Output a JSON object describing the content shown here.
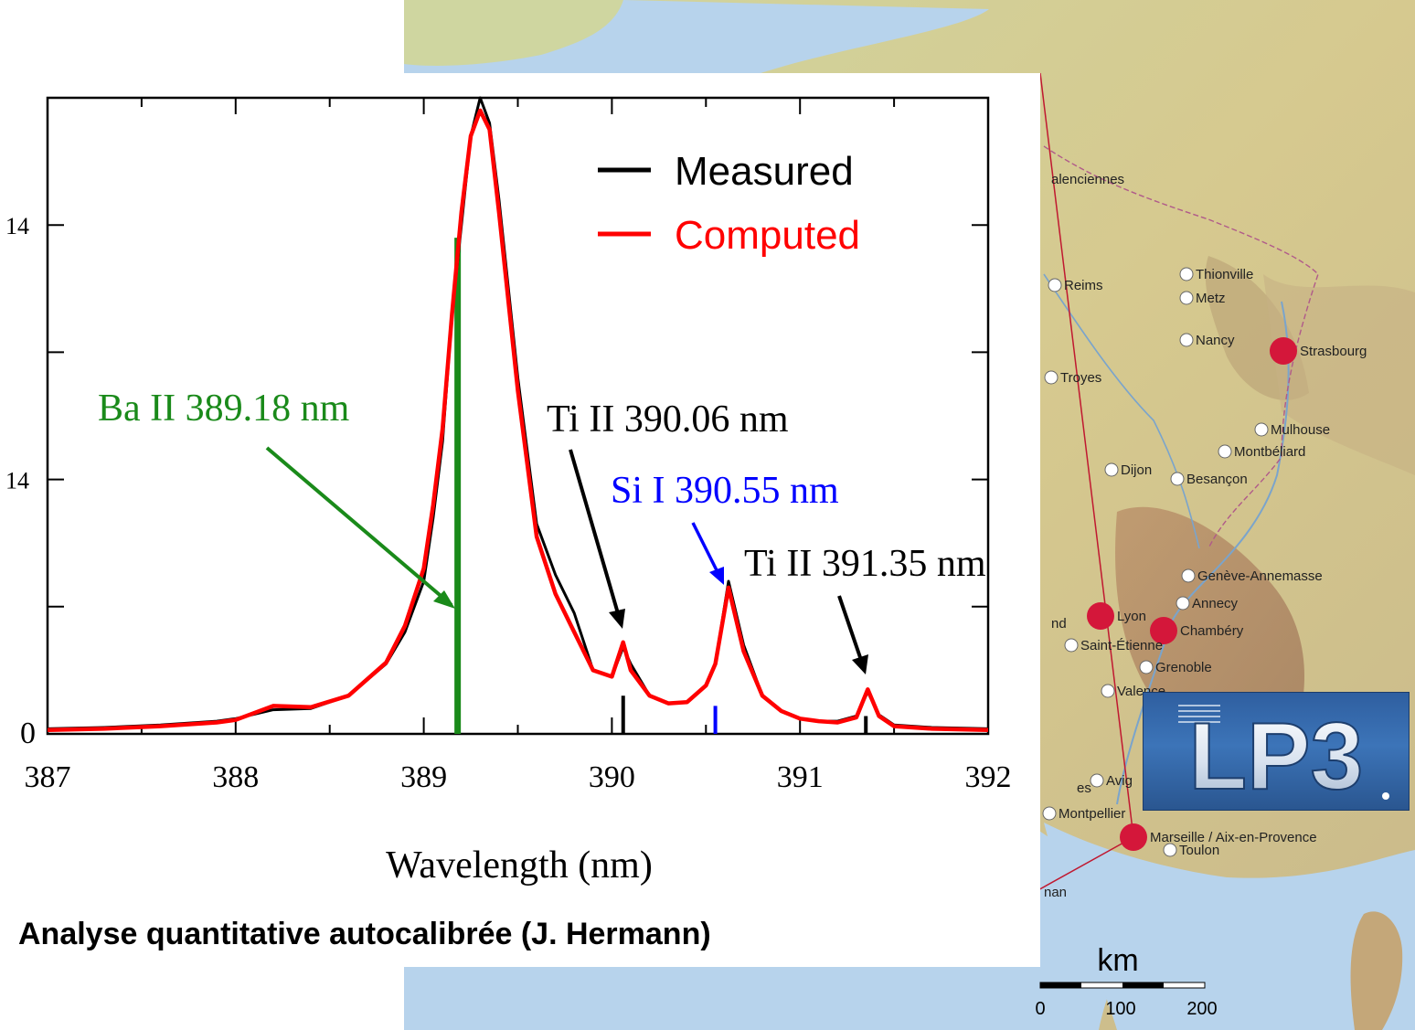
{
  "map": {
    "cities": [
      {
        "name": "alenciennes",
        "major": false
      },
      {
        "name": "Reims",
        "major": false
      },
      {
        "name": "Thionville",
        "major": false
      },
      {
        "name": "Metz",
        "major": false
      },
      {
        "name": "Nancy",
        "major": false
      },
      {
        "name": "Strasbourg",
        "major": true
      },
      {
        "name": "Troyes",
        "major": false
      },
      {
        "name": "Mulhouse",
        "major": false
      },
      {
        "name": "Montbéliard",
        "major": false
      },
      {
        "name": "Dijon",
        "major": false
      },
      {
        "name": "Besançon",
        "major": false
      },
      {
        "name": "Genève-Annemasse",
        "major": false
      },
      {
        "name": "Annecy",
        "major": false
      },
      {
        "name": "Lyon",
        "major": true
      },
      {
        "name": "Chambéry",
        "major": true
      },
      {
        "name": "nd",
        "major": false
      },
      {
        "name": "Saint-Étienne",
        "major": false
      },
      {
        "name": "Grenoble",
        "major": false
      },
      {
        "name": "Valence",
        "major": false
      },
      {
        "name": "es",
        "major": false
      },
      {
        "name": "Avig",
        "major": false
      },
      {
        "name": "Montpellier",
        "major": false
      },
      {
        "name": "Marseille / Aix-en-Provence",
        "major": true
      },
      {
        "name": "Toulon",
        "major": false
      },
      {
        "name": "nan",
        "major": false
      }
    ],
    "scale": {
      "unit": "km",
      "ticks": [
        "0",
        "100",
        "200"
      ]
    },
    "colors": {
      "sea": "#b7d3ec",
      "land": "#d9d6a8",
      "major_dot": "#d4173a",
      "link_line": "#c01830"
    }
  },
  "logo": {
    "text": "LP3"
  },
  "caption": "Analyse quantitative autocalibrée (J. Hermann)",
  "chart_data": {
    "type": "line",
    "xlabel": "Wavelength (nm)",
    "ylabel": "",
    "xlim": [
      387,
      392
    ],
    "ylim": [
      0,
      5
    ],
    "x_ticks": [
      "387",
      "388",
      "389",
      "390",
      "391",
      "392"
    ],
    "y_tick_labels_visible": [
      "0",
      "14",
      "14"
    ],
    "legend": {
      "placement": "top-right",
      "entries": [
        {
          "label": "Measured",
          "color": "#000000"
        },
        {
          "label": "Computed",
          "color": "#ff0000"
        }
      ]
    },
    "series": [
      {
        "name": "Measured",
        "color": "#000000",
        "x": [
          387.0,
          387.3,
          387.6,
          387.9,
          388.0,
          388.2,
          388.4,
          388.6,
          388.8,
          388.9,
          389.0,
          389.05,
          389.1,
          389.15,
          389.2,
          389.25,
          389.3,
          389.35,
          389.4,
          389.5,
          389.6,
          389.7,
          389.8,
          389.9,
          390.0,
          390.06,
          390.1,
          390.2,
          390.3,
          390.4,
          390.5,
          390.55,
          390.62,
          390.7,
          390.8,
          390.9,
          391.0,
          391.1,
          391.2,
          391.3,
          391.36,
          391.42,
          391.5,
          391.7,
          392.0
        ],
        "y": [
          0.04,
          0.05,
          0.07,
          0.1,
          0.12,
          0.19,
          0.2,
          0.3,
          0.55,
          0.8,
          1.2,
          1.7,
          2.3,
          3.3,
          4.0,
          4.7,
          5.0,
          4.8,
          4.2,
          2.8,
          1.65,
          1.25,
          0.95,
          0.5,
          0.45,
          0.68,
          0.55,
          0.3,
          0.24,
          0.25,
          0.38,
          0.55,
          1.2,
          0.7,
          0.3,
          0.18,
          0.12,
          0.1,
          0.1,
          0.14,
          0.33,
          0.15,
          0.07,
          0.05,
          0.04
        ]
      },
      {
        "name": "Computed",
        "color": "#ff0000",
        "x": [
          387.0,
          387.3,
          387.6,
          387.9,
          388.0,
          388.2,
          388.4,
          388.6,
          388.8,
          388.9,
          389.0,
          389.05,
          389.1,
          389.15,
          389.2,
          389.25,
          389.3,
          389.35,
          389.4,
          389.5,
          389.6,
          389.7,
          389.8,
          389.9,
          390.0,
          390.06,
          390.1,
          390.2,
          390.3,
          390.4,
          390.5,
          390.55,
          390.62,
          390.7,
          390.8,
          390.9,
          391.0,
          391.1,
          391.2,
          391.3,
          391.36,
          391.42,
          391.5,
          391.7,
          392.0
        ],
        "y": [
          0.03,
          0.04,
          0.06,
          0.09,
          0.11,
          0.22,
          0.21,
          0.3,
          0.56,
          0.85,
          1.3,
          1.8,
          2.4,
          3.3,
          4.1,
          4.7,
          4.9,
          4.75,
          4.1,
          2.7,
          1.55,
          1.1,
          0.8,
          0.5,
          0.45,
          0.72,
          0.5,
          0.3,
          0.24,
          0.25,
          0.38,
          0.55,
          1.15,
          0.65,
          0.3,
          0.18,
          0.12,
          0.1,
          0.09,
          0.13,
          0.35,
          0.14,
          0.06,
          0.04,
          0.03
        ]
      }
    ],
    "line_markers": [
      {
        "label": "Ba II 389.18 nm",
        "x": 389.18,
        "height": 3.9,
        "color": "#1a8a1a"
      },
      {
        "label": "Ti II 390.06 nm",
        "x": 390.06,
        "height": 0.3,
        "color": "#000000"
      },
      {
        "label": "Si I 390.55 nm",
        "x": 390.55,
        "height": 0.22,
        "color": "#0000ff"
      },
      {
        "label": "Ti II 391.35 nm",
        "x": 391.35,
        "height": 0.14,
        "color": "#000000"
      }
    ]
  }
}
